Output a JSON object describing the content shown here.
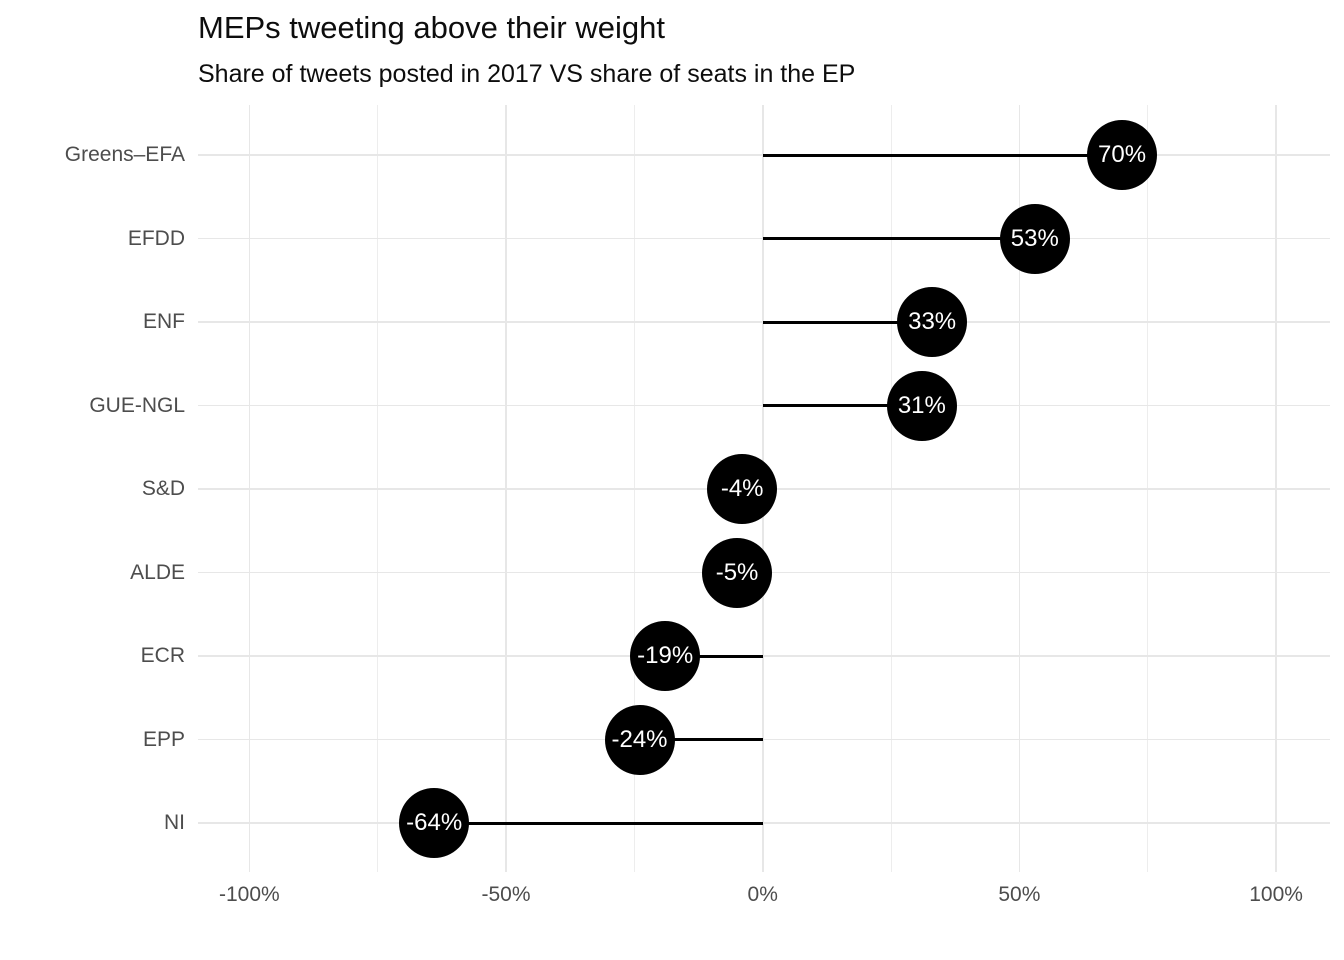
{
  "chart": {
    "title": "MEPs tweeting above their weight",
    "subtitle": "Share of tweets posted in 2017 VS share of seats in the EP"
  },
  "chart_data": {
    "type": "bar",
    "variant": "horizontal-lollipop",
    "title": "MEPs tweeting above their weight",
    "subtitle": "Share of tweets posted in 2017 VS share of seats in the EP",
    "categories": [
      "Greens–EFA",
      "EFDD",
      "ENF",
      "GUE-NGL",
      "S&D",
      "ALDE",
      "ECR",
      "EPP",
      "NI"
    ],
    "values": [
      70,
      53,
      33,
      31,
      -4,
      -5,
      -19,
      -24,
      -64
    ],
    "point_labels": [
      "70%",
      "53%",
      "33%",
      "31%",
      "-4%",
      "-5%",
      "-19%",
      "-24%",
      "-64%"
    ],
    "baseline": 0,
    "xlabel": "",
    "ylabel": "",
    "xlim": [
      -110,
      110.5
    ],
    "x_major_ticks": [
      -100,
      -50,
      0,
      50,
      100
    ],
    "x_major_tick_labels": [
      "-100%",
      "-50%",
      "0%",
      "50%",
      "100%"
    ],
    "x_minor_ticks": [
      -75,
      -25,
      25,
      75
    ],
    "grid": true,
    "legend": false,
    "colors": {
      "point_fill": "#000000",
      "point_text": "#ffffff",
      "stem": "#000000",
      "grid_major": "#e7e7e7",
      "grid_minor": "#ededed",
      "axis_text": "#4d4d4d",
      "title_text": "#0d0d0d",
      "background": "#ffffff"
    }
  }
}
